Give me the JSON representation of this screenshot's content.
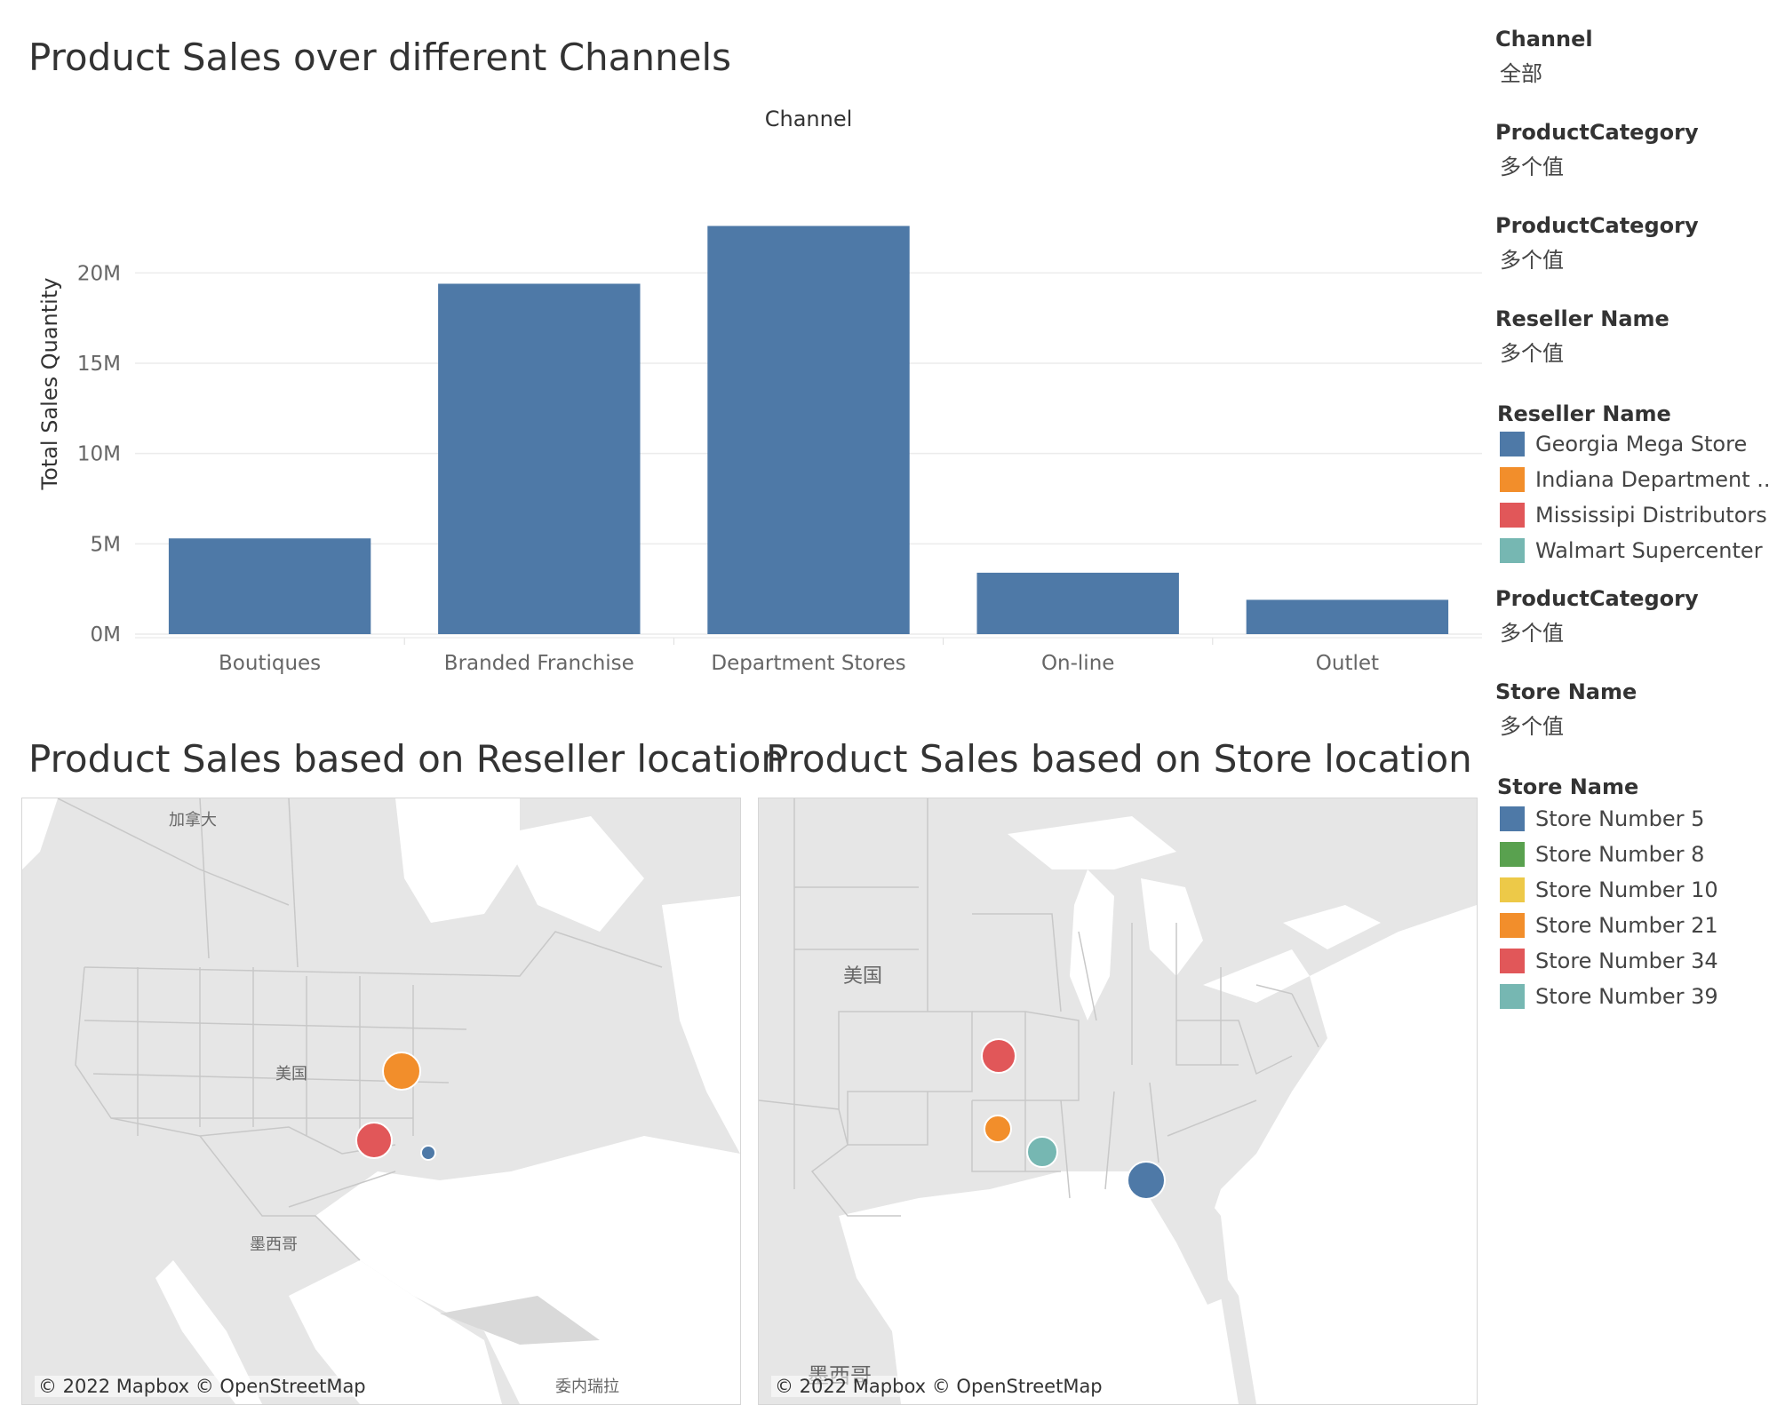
{
  "header": {
    "bar_title": "Product Sales over different Channels",
    "reseller_map_title": "Product Sales based on Reseller location",
    "store_map_title": "Product Sales based on Store location"
  },
  "chart_data": {
    "type": "bar",
    "title": "Product Sales over different Channels",
    "column_header": "Channel",
    "ylabel": "Total Sales Quantity",
    "xlabel": "",
    "categories": [
      "Boutiques",
      "Branded Franchise",
      "Department Stores",
      "On-line",
      "Outlet"
    ],
    "values": [
      5300000,
      19400000,
      22600000,
      3400000,
      1900000
    ],
    "y_ticks": [
      0,
      5000000,
      10000000,
      15000000,
      20000000
    ],
    "y_tick_labels": [
      "0M",
      "5M",
      "10M",
      "15M",
      "20M"
    ],
    "ylim": [
      0,
      23800000
    ],
    "grid": true,
    "bar_color": "#4e79a7"
  },
  "reseller_map": {
    "credit": "© 2022 Mapbox © OpenStreetMap",
    "labels": [
      "加拿大",
      "美国",
      "墨西哥",
      "委内瑞拉"
    ],
    "bubbles": [
      {
        "name": "Indiana Department ..",
        "color": "#f28e2b"
      },
      {
        "name": "Mississipi Distributors",
        "color": "#e15759"
      },
      {
        "name": "Georgia Mega Store",
        "color": "#4e79a7"
      }
    ]
  },
  "store_map": {
    "credit": "© 2022 Mapbox © OpenStreetMap",
    "labels": [
      "美国",
      "墨西哥"
    ],
    "bubbles": [
      {
        "name": "Store Number 34",
        "color": "#e15759"
      },
      {
        "name": "Store Number 21",
        "color": "#f28e2b"
      },
      {
        "name": "Store Number 39",
        "color": "#76b7b2"
      },
      {
        "name": "Store Number 5",
        "color": "#4e79a7"
      }
    ]
  },
  "filters": [
    {
      "title": "Channel",
      "value": "全部"
    },
    {
      "title": "ProductCategory",
      "value": "多个值"
    },
    {
      "title": "ProductCategory",
      "value": "多个值"
    },
    {
      "title": "Reseller Name",
      "value": "多个值"
    },
    {
      "title": "ProductCategory",
      "value": "多个值"
    },
    {
      "title": "Store Name",
      "value": "多个值"
    }
  ],
  "reseller_legend": {
    "title": "Reseller Name",
    "items": [
      {
        "label": "Georgia Mega Store",
        "color": "#4e79a7"
      },
      {
        "label": "Indiana Department ..",
        "color": "#f28e2b"
      },
      {
        "label": "Mississipi Distributors",
        "color": "#e15759"
      },
      {
        "label": "Walmart Supercenter",
        "color": "#76b7b2"
      }
    ]
  },
  "store_legend": {
    "title": "Store Name",
    "items": [
      {
        "label": "Store Number 5",
        "color": "#4e79a7"
      },
      {
        "label": "Store Number 8",
        "color": "#59a14f"
      },
      {
        "label": "Store Number 10",
        "color": "#edc948"
      },
      {
        "label": "Store Number 21",
        "color": "#f28e2b"
      },
      {
        "label": "Store Number 34",
        "color": "#e15759"
      },
      {
        "label": "Store Number 39",
        "color": "#76b7b2"
      }
    ]
  }
}
